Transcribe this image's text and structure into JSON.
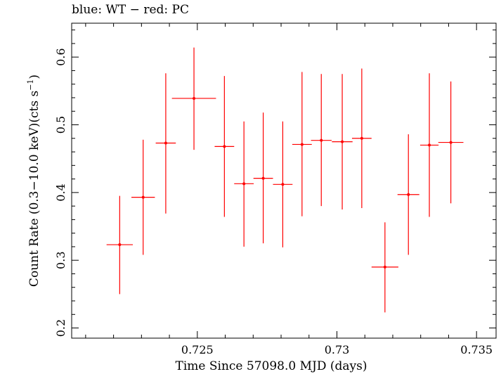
{
  "chart_data": {
    "type": "scatter",
    "title": "blue: WT − red: PC",
    "xlabel": "Time Since 57098.0 MJD (days)",
    "ylabel_main": "Count Rate (0.3−10.0 keV)(cts s",
    "ylabel_sup": "−1",
    "ylabel_tail": ")",
    "xlim": [
      0.7205,
      0.7357
    ],
    "ylim": [
      0.185,
      0.65
    ],
    "xticks": [
      0.725,
      0.73,
      0.735
    ],
    "xtick_labels": [
      "0.725",
      "0.73",
      "0.735"
    ],
    "yticks": [
      0.2,
      0.3,
      0.4,
      0.5,
      0.6
    ],
    "ytick_labels": [
      "0.2",
      "0.3",
      "0.4",
      "0.5",
      "0.6"
    ],
    "grid": false,
    "series": [
      {
        "name": "PC",
        "color": "#ff0000",
        "points": [
          {
            "x": 0.72222,
            "xerr": 0.00047,
            "y": 0.323,
            "yerr": [
              0.073,
              0.072
            ]
          },
          {
            "x": 0.72306,
            "xerr": 0.00042,
            "y": 0.393,
            "yerr": [
              0.085,
              0.085
            ]
          },
          {
            "x": 0.72387,
            "xerr": 0.00036,
            "y": 0.473,
            "yerr": [
              0.104,
              0.103
            ]
          },
          {
            "x": 0.72488,
            "xerr": 0.00079,
            "y": 0.539,
            "yerr": [
              0.076,
              0.075
            ]
          },
          {
            "x": 0.72597,
            "xerr": 0.00035,
            "y": 0.468,
            "yerr": [
              0.104,
              0.104
            ]
          },
          {
            "x": 0.72667,
            "xerr": 0.00035,
            "y": 0.413,
            "yerr": [
              0.093,
              0.092
            ]
          },
          {
            "x": 0.72736,
            "xerr": 0.00035,
            "y": 0.421,
            "yerr": [
              0.096,
              0.097
            ]
          },
          {
            "x": 0.72806,
            "xerr": 0.00035,
            "y": 0.412,
            "yerr": [
              0.093,
              0.093
            ]
          },
          {
            "x": 0.72875,
            "xerr": 0.00035,
            "y": 0.471,
            "yerr": [
              0.106,
              0.107
            ]
          },
          {
            "x": 0.72944,
            "xerr": 0.00037,
            "y": 0.477,
            "yerr": [
              0.097,
              0.098
            ]
          },
          {
            "x": 0.73019,
            "xerr": 0.00037,
            "y": 0.475,
            "yerr": [
              0.1,
              0.1
            ]
          },
          {
            "x": 0.73089,
            "xerr": 0.00035,
            "y": 0.48,
            "yerr": [
              0.103,
              0.103
            ]
          },
          {
            "x": 0.73172,
            "xerr": 0.00048,
            "y": 0.29,
            "yerr": [
              0.067,
              0.066
            ]
          },
          {
            "x": 0.73256,
            "xerr": 0.00039,
            "y": 0.397,
            "yerr": [
              0.089,
              0.089
            ]
          },
          {
            "x": 0.73331,
            "xerr": 0.00033,
            "y": 0.47,
            "yerr": [
              0.106,
              0.106
            ]
          },
          {
            "x": 0.73408,
            "xerr": 0.00045,
            "y": 0.474,
            "yerr": [
              0.09,
              0.09
            ]
          }
        ]
      }
    ]
  }
}
